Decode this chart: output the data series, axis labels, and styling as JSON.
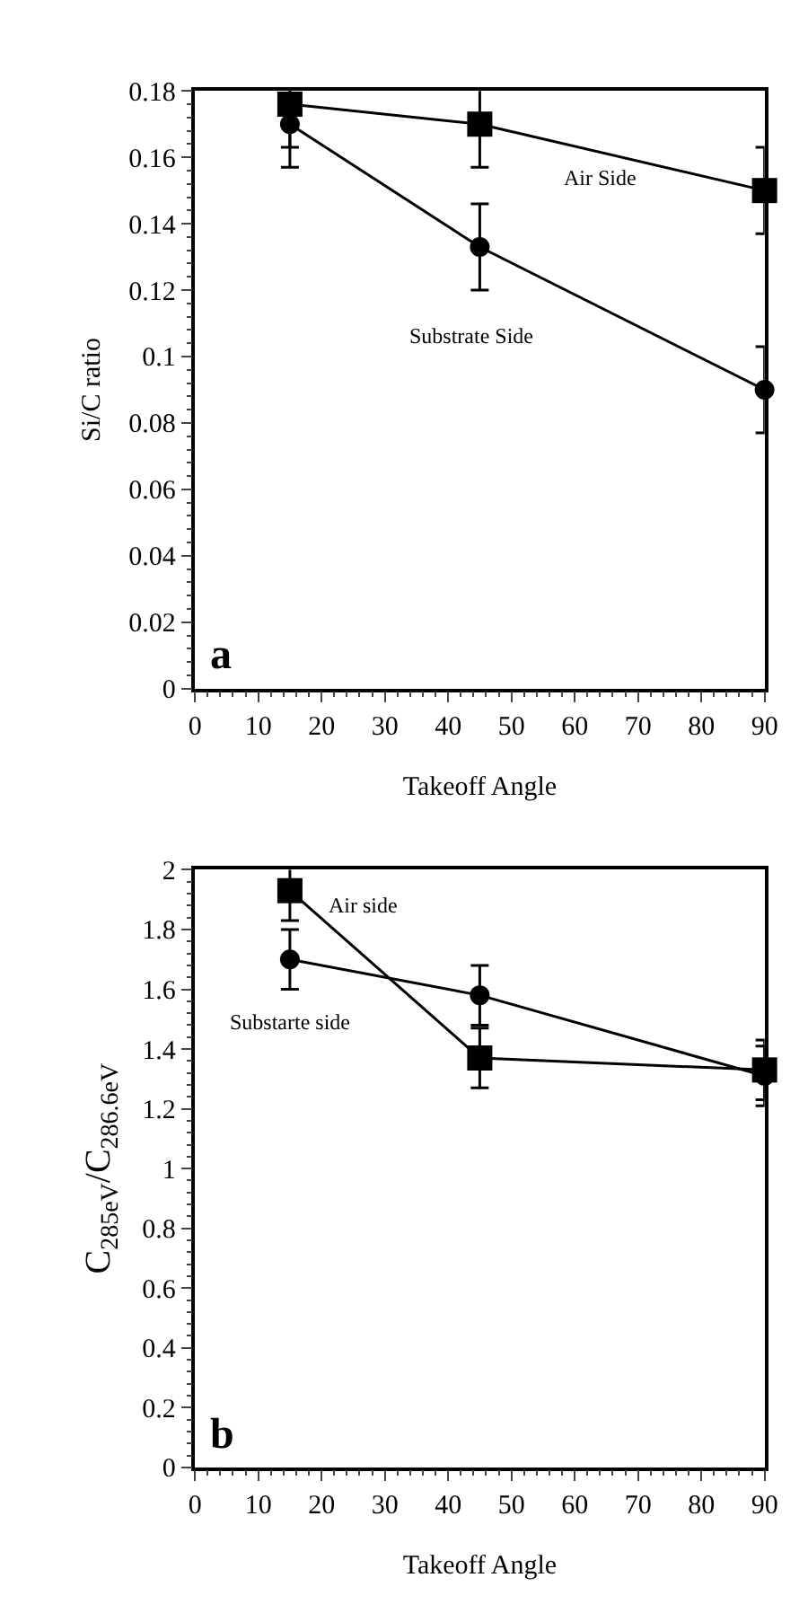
{
  "chart_data": [
    {
      "type": "line",
      "xlabel": "Takeoff Angle",
      "ylabel": "Si/C ratio",
      "x": [
        15,
        45,
        90
      ],
      "xlim": [
        0,
        90
      ],
      "xticks": [
        0,
        10,
        20,
        30,
        40,
        50,
        60,
        70,
        80,
        90
      ],
      "ylim": [
        0,
        0.18
      ],
      "yticks": [
        0,
        0.02,
        0.04,
        0.06,
        0.08,
        0.1,
        0.12,
        0.14,
        0.16,
        0.18
      ],
      "annotations": [
        "a"
      ],
      "series": [
        {
          "name": "Air Side",
          "color": "#000000",
          "marker": "square",
          "values": [
            0.176,
            0.17,
            0.15
          ],
          "errors": [
            0.013,
            0.013,
            0.013
          ]
        },
        {
          "name": "Substrate Side",
          "color": "#000000",
          "marker": "circle",
          "values": [
            0.17,
            0.133,
            0.09
          ],
          "errors": [
            0.013,
            0.013,
            0.013
          ]
        }
      ]
    },
    {
      "type": "line",
      "xlabel": "Takeoff Angle",
      "ylabel": "C$_{285eV}$/C$_{286.6eV}$",
      "x": [
        15,
        45,
        90
      ],
      "xlim": [
        0,
        90
      ],
      "xticks": [
        0,
        10,
        20,
        30,
        40,
        50,
        60,
        70,
        80,
        90
      ],
      "ylim": [
        0,
        2
      ],
      "yticks": [
        0,
        0.2,
        0.4,
        0.6,
        0.8,
        1,
        1.2,
        1.4,
        1.6,
        1.8,
        2
      ],
      "annotations": [
        "b"
      ],
      "series": [
        {
          "name": "Air side",
          "color": "#000000",
          "marker": "square",
          "values": [
            1.93,
            1.37,
            1.33
          ],
          "errors": [
            0.1,
            0.1,
            0.1
          ]
        },
        {
          "name": "Substarte side",
          "color": "#000000",
          "marker": "circle",
          "values": [
            1.7,
            1.58,
            1.31
          ],
          "errors": [
            0.1,
            0.1,
            0.1
          ]
        }
      ]
    }
  ]
}
